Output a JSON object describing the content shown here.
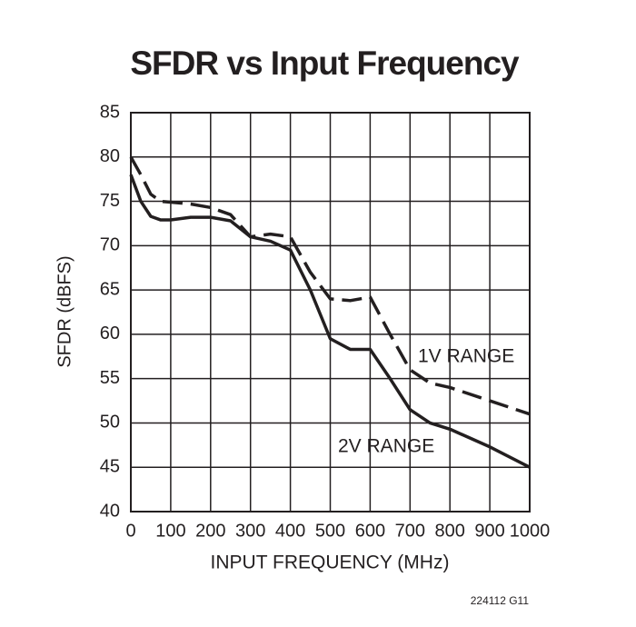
{
  "chart_data": {
    "type": "line",
    "title": "SFDR vs Input Frequency",
    "xlabel": "INPUT FREQUENCY (MHz)",
    "ylabel": "SFDR (dBFS)",
    "note": "224112 G11",
    "x": [
      0,
      25,
      50,
      75,
      100,
      150,
      200,
      250,
      300,
      350,
      400,
      450,
      500,
      550,
      600,
      650,
      700,
      750,
      800,
      900,
      1000
    ],
    "series": [
      {
        "name": "1V RANGE",
        "color": "#231f20",
        "dashed": true,
        "values": [
          80,
          78,
          75.8,
          75,
          74.9,
          74.7,
          74.3,
          73.5,
          71,
          71.3,
          71,
          67,
          64,
          63.8,
          64.2,
          60,
          56,
          54.5,
          54,
          52.5,
          51
        ]
      },
      {
        "name": "2V RANGE",
        "color": "#231f20",
        "dashed": false,
        "values": [
          78,
          75,
          73.3,
          72.9,
          72.9,
          73.2,
          73.2,
          72.8,
          71,
          70.5,
          69.5,
          65,
          59.5,
          58.3,
          58.3,
          55,
          51.5,
          50,
          49.3,
          47.3,
          45
        ]
      }
    ],
    "xlim": [
      0,
      1000
    ],
    "xticks": [
      0,
      100,
      200,
      300,
      400,
      500,
      600,
      700,
      800,
      900,
      1000
    ],
    "ylim": [
      40,
      85
    ],
    "yticks": [
      40,
      45,
      50,
      55,
      60,
      65,
      70,
      75,
      80,
      85
    ],
    "grid": true
  }
}
